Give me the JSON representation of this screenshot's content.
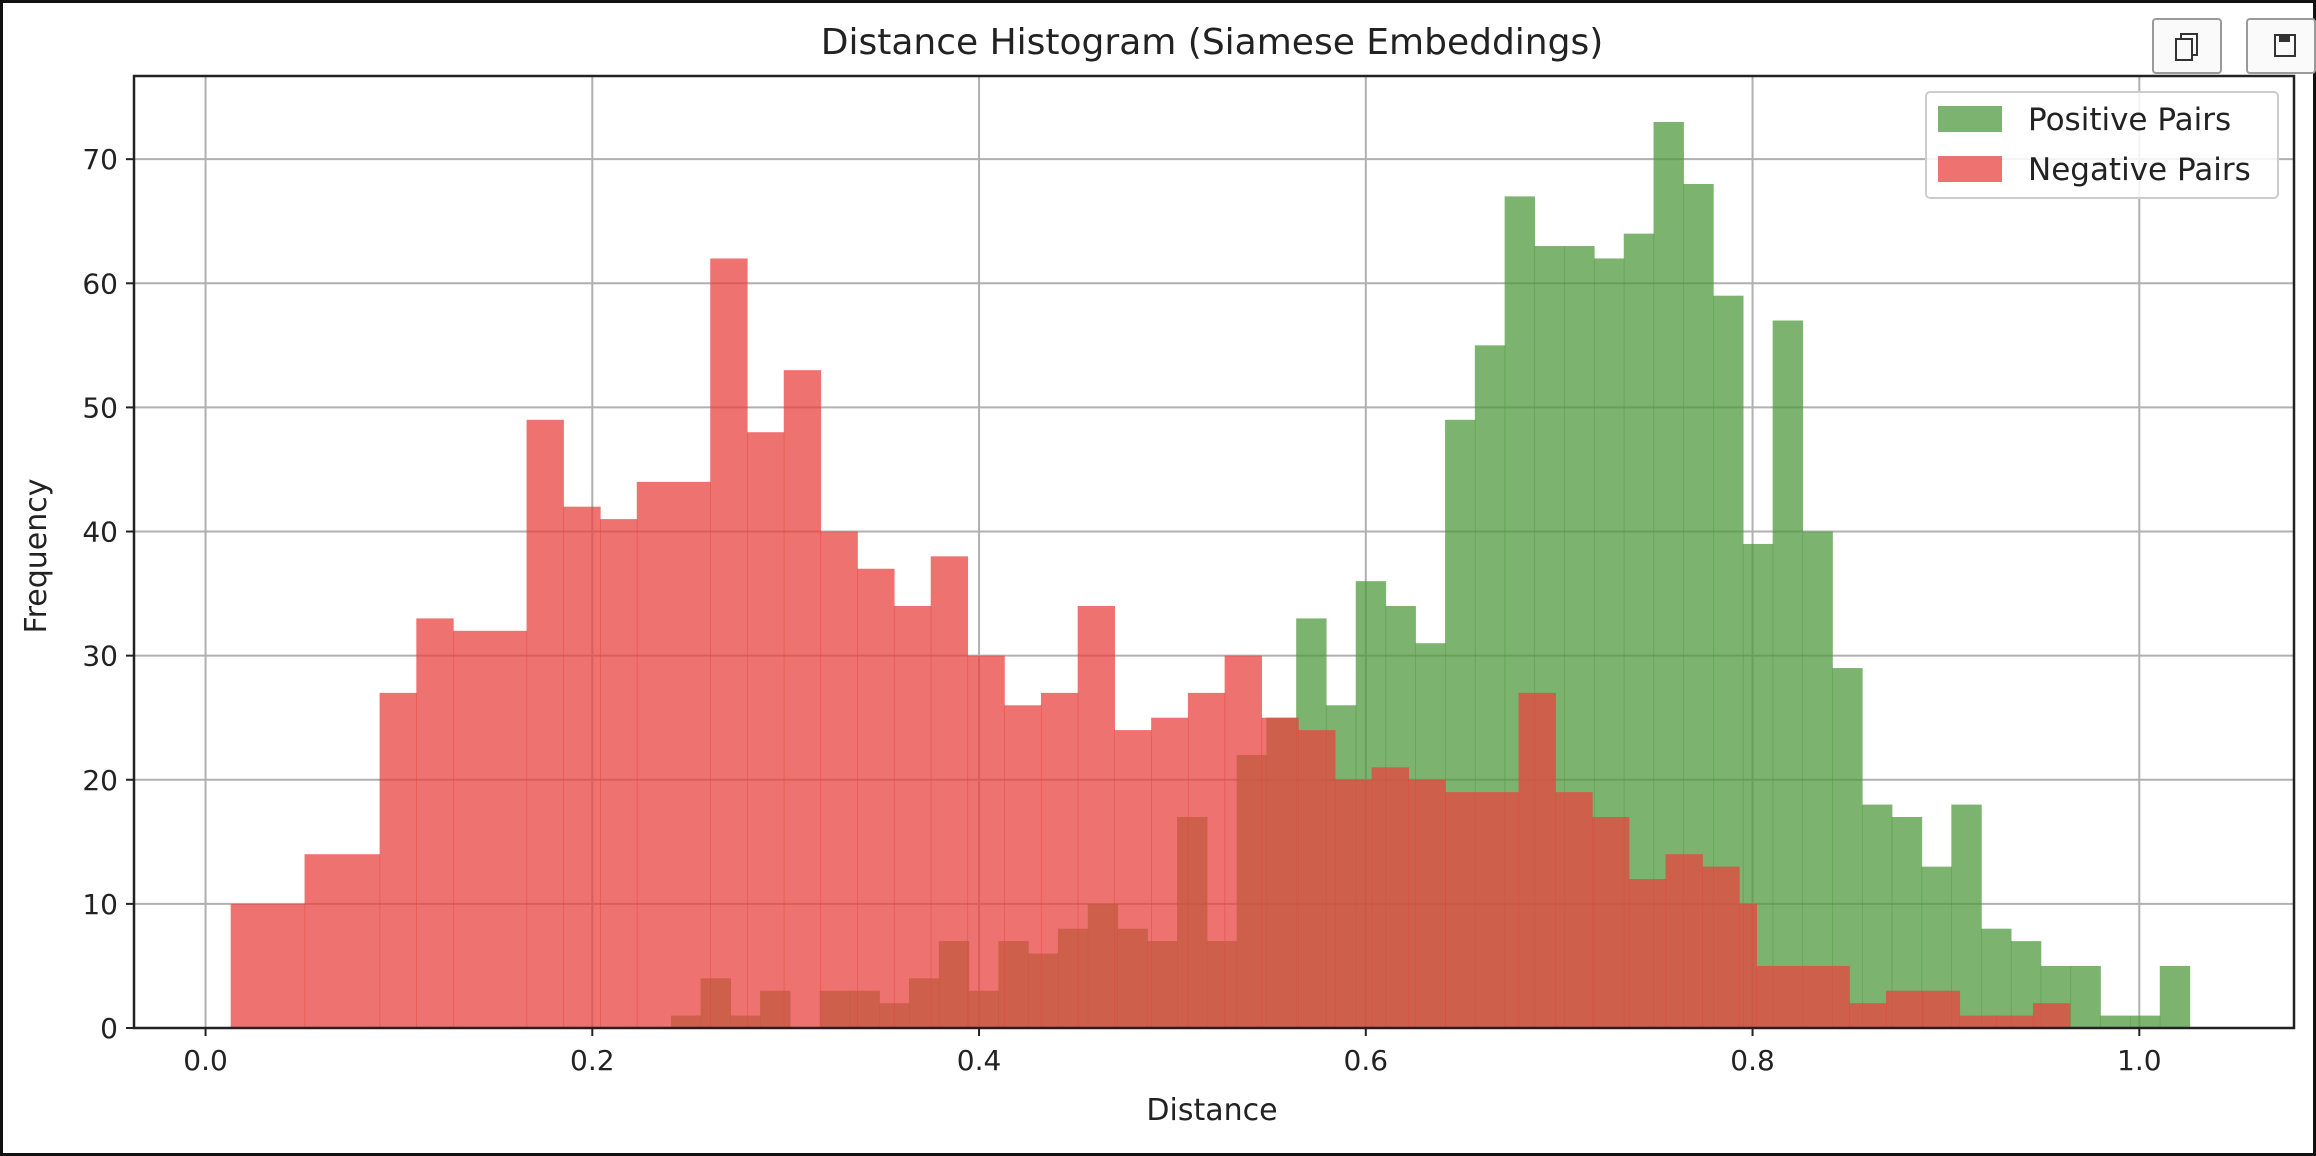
{
  "toolbar": {
    "copy_icon": "copy-icon",
    "save_icon": "save-icon"
  },
  "chart_data": {
    "type": "histogram",
    "title": "Distance Histogram (Siamese Embeddings)",
    "xlabel": "Distance",
    "ylabel": "Frequency",
    "xlim": [
      -0.037,
      1.08
    ],
    "ylim": [
      0,
      76.7
    ],
    "xticks": [
      "0.0",
      "0.2",
      "0.4",
      "0.6",
      "0.8",
      "1.0"
    ],
    "xtick_values": [
      0.0,
      0.2,
      0.4,
      0.6,
      0.8,
      1.0
    ],
    "yticks": [
      "0",
      "10",
      "20",
      "30",
      "40",
      "50",
      "60",
      "70"
    ],
    "ytick_values": [
      0,
      10,
      20,
      30,
      40,
      50,
      60,
      70
    ],
    "grid": true,
    "legend_position": "top-right",
    "overlap_color": "#b14e35",
    "series": [
      {
        "name": "Positive Pairs",
        "color": "#4f9a3f",
        "alpha": 0.75,
        "bins": [
          [
            0.2407,
            0.256,
            1
          ],
          [
            0.256,
            0.2714,
            4
          ],
          [
            0.2714,
            0.2868,
            1
          ],
          [
            0.2868,
            0.3022,
            3
          ],
          [
            0.3022,
            0.3176,
            0
          ],
          [
            0.3176,
            0.333,
            3
          ],
          [
            0.333,
            0.3484,
            3
          ],
          [
            0.3484,
            0.3638,
            2
          ],
          [
            0.3638,
            0.3792,
            4
          ],
          [
            0.3792,
            0.3946,
            7
          ],
          [
            0.3946,
            0.41,
            3
          ],
          [
            0.41,
            0.4254,
            7
          ],
          [
            0.4254,
            0.4408,
            6
          ],
          [
            0.4408,
            0.4562,
            8
          ],
          [
            0.4562,
            0.4716,
            10
          ],
          [
            0.4716,
            0.487,
            8
          ],
          [
            0.487,
            0.5024,
            7
          ],
          [
            0.5024,
            0.5178,
            17
          ],
          [
            0.5178,
            0.5332,
            7
          ],
          [
            0.5332,
            0.5486,
            22
          ],
          [
            0.5486,
            0.564,
            25
          ],
          [
            0.564,
            0.5794,
            33
          ],
          [
            0.5794,
            0.5948,
            26
          ],
          [
            0.5948,
            0.6102,
            36
          ],
          [
            0.6102,
            0.6256,
            34
          ],
          [
            0.6256,
            0.641,
            31
          ],
          [
            0.641,
            0.6564,
            49
          ],
          [
            0.6564,
            0.6718,
            55
          ],
          [
            0.6718,
            0.6872,
            67
          ],
          [
            0.6872,
            0.7026,
            63
          ],
          [
            0.7026,
            0.718,
            63
          ],
          [
            0.718,
            0.7334,
            62
          ],
          [
            0.7334,
            0.7488,
            64
          ],
          [
            0.7488,
            0.7642,
            73
          ],
          [
            0.7642,
            0.7796,
            68
          ],
          [
            0.7796,
            0.795,
            59
          ],
          [
            0.795,
            0.8104,
            39
          ],
          [
            0.8104,
            0.8258,
            57
          ],
          [
            0.8258,
            0.8412,
            40
          ],
          [
            0.8412,
            0.8566,
            29
          ],
          [
            0.8566,
            0.872,
            18
          ],
          [
            0.872,
            0.8874,
            17
          ],
          [
            0.8874,
            0.9028,
            13
          ],
          [
            0.9028,
            0.9182,
            18
          ],
          [
            0.9182,
            0.9336,
            8
          ],
          [
            0.9336,
            0.949,
            7
          ],
          [
            0.949,
            0.9644,
            5
          ],
          [
            0.9644,
            0.9798,
            5
          ],
          [
            0.9798,
            0.9952,
            1
          ],
          [
            0.9952,
            1.0106,
            1
          ],
          [
            1.0106,
            1.026,
            5
          ]
        ]
      },
      {
        "name": "Negative Pairs",
        "color": "#e8433f",
        "alpha": 0.75,
        "bins": [
          [
            0.013,
            0.0512,
            10
          ],
          [
            0.0512,
            0.09,
            14
          ],
          [
            0.09,
            0.109,
            27
          ],
          [
            0.109,
            0.128,
            33
          ],
          [
            0.128,
            0.166,
            32
          ],
          [
            0.166,
            0.185,
            49
          ],
          [
            0.185,
            0.204,
            42
          ],
          [
            0.204,
            0.223,
            41
          ],
          [
            0.223,
            0.261,
            44
          ],
          [
            0.261,
            0.28,
            62
          ],
          [
            0.28,
            0.299,
            48
          ],
          [
            0.299,
            0.318,
            53
          ],
          [
            0.318,
            0.337,
            40
          ],
          [
            0.337,
            0.356,
            37
          ],
          [
            0.356,
            0.375,
            34
          ],
          [
            0.375,
            0.394,
            38
          ],
          [
            0.394,
            0.413,
            30
          ],
          [
            0.413,
            0.432,
            26
          ],
          [
            0.432,
            0.451,
            27
          ],
          [
            0.451,
            0.47,
            34
          ],
          [
            0.47,
            0.489,
            24
          ],
          [
            0.489,
            0.508,
            25
          ],
          [
            0.508,
            0.527,
            27
          ],
          [
            0.527,
            0.546,
            30
          ],
          [
            0.546,
            0.565,
            25
          ],
          [
            0.565,
            0.584,
            24
          ],
          [
            0.584,
            0.603,
            20
          ],
          [
            0.603,
            0.622,
            21
          ],
          [
            0.622,
            0.641,
            20
          ],
          [
            0.641,
            0.679,
            19
          ],
          [
            0.679,
            0.698,
            27
          ],
          [
            0.698,
            0.717,
            19
          ],
          [
            0.717,
            0.736,
            17
          ],
          [
            0.736,
            0.755,
            12
          ],
          [
            0.755,
            0.774,
            14
          ],
          [
            0.774,
            0.793,
            13
          ],
          [
            0.793,
            0.802,
            10
          ],
          [
            0.802,
            0.85,
            5
          ],
          [
            0.85,
            0.869,
            2
          ],
          [
            0.869,
            0.888,
            3
          ],
          [
            0.888,
            0.907,
            3
          ],
          [
            0.907,
            0.926,
            1
          ],
          [
            0.926,
            0.945,
            1
          ],
          [
            0.945,
            0.964,
            2
          ]
        ]
      }
    ]
  }
}
